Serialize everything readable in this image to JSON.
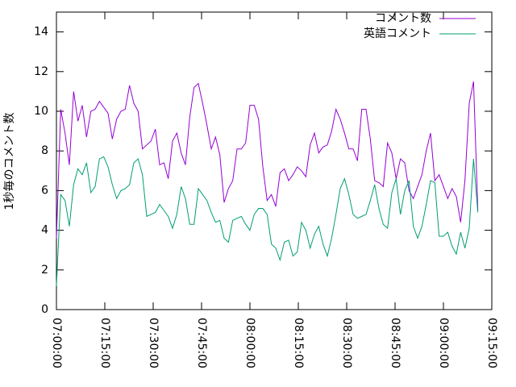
{
  "chart_data": {
    "type": "line",
    "y_label": "1秒毎のコメント数",
    "x": [
      "07:00:00",
      "07:01:20",
      "07:02:40",
      "07:04:00",
      "07:05:20",
      "07:06:40",
      "07:08:00",
      "07:09:20",
      "07:10:40",
      "07:12:00",
      "07:13:20",
      "07:14:40",
      "07:16:00",
      "07:17:20",
      "07:18:40",
      "07:20:00",
      "07:21:20",
      "07:22:40",
      "07:24:00",
      "07:25:20",
      "07:26:40",
      "07:28:00",
      "07:29:20",
      "07:30:40",
      "07:32:00",
      "07:33:20",
      "07:34:40",
      "07:36:00",
      "07:37:20",
      "07:38:40",
      "07:40:00",
      "07:41:20",
      "07:42:40",
      "07:44:00",
      "07:45:20",
      "07:46:40",
      "07:48:00",
      "07:49:20",
      "07:50:40",
      "07:52:00",
      "07:53:20",
      "07:54:40",
      "07:56:00",
      "07:57:20",
      "07:58:40",
      "08:00:00",
      "08:01:20",
      "08:02:40",
      "08:04:00",
      "08:05:20",
      "08:06:40",
      "08:08:00",
      "08:09:20",
      "08:10:40",
      "08:12:00",
      "08:13:20",
      "08:14:40",
      "08:16:00",
      "08:17:20",
      "08:18:40",
      "08:20:00",
      "08:21:20",
      "08:22:40",
      "08:24:00",
      "08:25:20",
      "08:26:40",
      "08:28:00",
      "08:29:20",
      "08:30:40",
      "08:32:00",
      "08:33:20",
      "08:34:40",
      "08:36:00",
      "08:37:20",
      "08:38:40",
      "08:40:00",
      "08:41:20",
      "08:42:40",
      "08:44:00",
      "08:45:20",
      "08:46:40",
      "08:48:00",
      "08:49:20",
      "08:50:40",
      "08:52:00",
      "08:53:20",
      "08:54:40",
      "08:56:00",
      "08:57:20",
      "08:58:40",
      "09:00:00",
      "09:01:20",
      "09:02:40",
      "09:04:00",
      "09:05:20",
      "09:06:40",
      "09:08:00",
      "09:09:20",
      "09:10:40"
    ],
    "series": [
      {
        "name": "コメント数",
        "color": "#9400d3",
        "values": [
          3.6,
          10.1,
          8.9,
          7.3,
          11.0,
          9.5,
          10.3,
          8.7,
          10.0,
          10.1,
          10.5,
          10.2,
          9.9,
          8.6,
          9.6,
          10.0,
          10.1,
          11.3,
          10.4,
          10.0,
          8.1,
          8.3,
          8.5,
          9.1,
          7.3,
          7.4,
          6.6,
          8.5,
          8.9,
          7.9,
          7.3,
          9.7,
          11.2,
          11.4,
          10.4,
          9.3,
          8.1,
          8.7,
          7.8,
          5.4,
          6.1,
          6.5,
          8.1,
          8.1,
          8.4,
          10.3,
          10.3,
          9.6,
          7.2,
          5.5,
          5.8,
          5.2,
          6.9,
          7.1,
          6.5,
          6.8,
          7.2,
          7.0,
          6.7,
          8.3,
          8.9,
          7.9,
          8.2,
          8.3,
          9.0,
          10.1,
          9.6,
          8.9,
          8.1,
          8.1,
          7.5,
          10.1,
          10.1,
          8.6,
          6.5,
          6.4,
          6.2,
          8.4,
          7.9,
          6.6,
          7.6,
          7.4,
          6.0,
          5.6,
          6.2,
          6.8,
          8.0,
          8.9,
          6.5,
          6.8,
          6.2,
          5.6,
          6.1,
          5.7,
          4.4,
          6.5,
          10.4,
          11.5,
          5.0
        ]
      },
      {
        "name": "英語コメント",
        "color": "#009e73",
        "values": [
          1.2,
          5.8,
          5.5,
          4.2,
          6.3,
          7.1,
          6.8,
          7.4,
          5.9,
          6.2,
          7.6,
          7.7,
          7.2,
          6.3,
          5.6,
          6.0,
          6.1,
          6.3,
          7.4,
          7.6,
          6.8,
          4.7,
          4.8,
          4.9,
          5.3,
          5.0,
          4.7,
          4.1,
          4.8,
          6.2,
          5.6,
          4.3,
          4.3,
          6.1,
          5.8,
          5.5,
          4.9,
          4.4,
          4.5,
          3.6,
          3.4,
          4.5,
          4.6,
          4.7,
          4.3,
          4.0,
          4.8,
          5.1,
          5.1,
          4.8,
          3.3,
          3.1,
          2.5,
          3.4,
          3.5,
          2.7,
          2.9,
          4.4,
          4.0,
          3.1,
          3.8,
          4.2,
          3.3,
          2.7,
          3.6,
          4.8,
          6.1,
          6.6,
          5.8,
          4.8,
          4.6,
          4.7,
          4.8,
          5.5,
          6.3,
          5.1,
          4.3,
          4.1,
          5.9,
          6.6,
          4.8,
          6.0,
          6.5,
          4.2,
          3.6,
          4.2,
          5.3,
          6.5,
          6.4,
          3.7,
          3.7,
          3.9,
          3.2,
          2.8,
          3.9,
          3.1,
          4.1,
          7.6,
          4.9
        ]
      }
    ],
    "xlim": [
      "07:00:00",
      "09:15:00"
    ],
    "xticks": [
      "07:00:00",
      "07:15:00",
      "07:30:00",
      "07:45:00",
      "08:00:00",
      "08:15:00",
      "08:30:00",
      "08:45:00",
      "09:00:00",
      "09:15:00"
    ],
    "ylim": [
      0,
      15
    ],
    "yticks": [
      0,
      2,
      4,
      6,
      8,
      10,
      12,
      14
    ],
    "grid": false,
    "legend": "top-right"
  }
}
